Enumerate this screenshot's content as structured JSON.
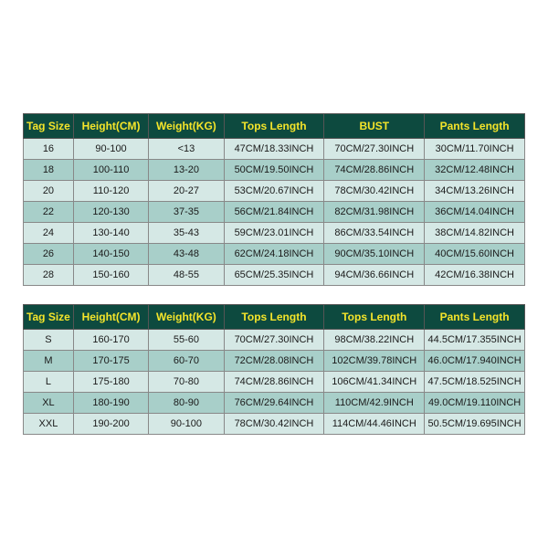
{
  "colors": {
    "header_bg": "#0d4a3f",
    "header_text": "#f5e52a",
    "row_even": "#d5e8e5",
    "row_odd": "#a8cfc9",
    "border": "#888888",
    "page_bg": "#ffffff"
  },
  "table1": {
    "headers": {
      "tag": "Tag Size",
      "height": "Height(CM)",
      "weight": "Weight(KG)",
      "tops": "Tops Length",
      "bust": "BUST",
      "pants": "Pants Length"
    },
    "rows": [
      {
        "tag": "16",
        "height": "90-100",
        "weight": "<13",
        "tops": "47CM/18.33INCH",
        "bust": "70CM/27.30INCH",
        "pants": "30CM/11.70INCH"
      },
      {
        "tag": "18",
        "height": "100-110",
        "weight": "13-20",
        "tops": "50CM/19.50INCH",
        "bust": "74CM/28.86INCH",
        "pants": "32CM/12.48INCH"
      },
      {
        "tag": "20",
        "height": "110-120",
        "weight": "20-27",
        "tops": "53CM/20.67INCH",
        "bust": "78CM/30.42INCH",
        "pants": "34CM/13.26INCH"
      },
      {
        "tag": "22",
        "height": "120-130",
        "weight": "37-35",
        "tops": "56CM/21.84INCH",
        "bust": "82CM/31.98INCH",
        "pants": "36CM/14.04INCH"
      },
      {
        "tag": "24",
        "height": "130-140",
        "weight": "35-43",
        "tops": "59CM/23.01INCH",
        "bust": "86CM/33.54INCH",
        "pants": "38CM/14.82INCH"
      },
      {
        "tag": "26",
        "height": "140-150",
        "weight": "43-48",
        "tops": "62CM/24.18INCH",
        "bust": "90CM/35.10INCH",
        "pants": "40CM/15.60INCH"
      },
      {
        "tag": "28",
        "height": "150-160",
        "weight": "48-55",
        "tops": "65CM/25.35INCH",
        "bust": "94CM/36.66INCH",
        "pants": "42CM/16.38INCH"
      }
    ]
  },
  "table2": {
    "headers": {
      "tag": "Tag Size",
      "height": "Height(CM)",
      "weight": "Weight(KG)",
      "tops": "Tops Length",
      "bust": "Tops Length",
      "pants": "Pants Length"
    },
    "rows": [
      {
        "tag": "S",
        "height": "160-170",
        "weight": "55-60",
        "tops": "70CM/27.30INCH",
        "bust": "98CM/38.22INCH",
        "pants": "44.5CM/17.355INCH"
      },
      {
        "tag": "M",
        "height": "170-175",
        "weight": "60-70",
        "tops": "72CM/28.08INCH",
        "bust": "102CM/39.78INCH",
        "pants": "46.0CM/17.940INCH"
      },
      {
        "tag": "L",
        "height": "175-180",
        "weight": "70-80",
        "tops": "74CM/28.86INCH",
        "bust": "106CM/41.34INCH",
        "pants": "47.5CM/18.525INCH"
      },
      {
        "tag": "XL",
        "height": "180-190",
        "weight": "80-90",
        "tops": "76CM/29.64INCH",
        "bust": "110CM/42.9INCH",
        "pants": "49.0CM/19.110INCH"
      },
      {
        "tag": "XXL",
        "height": "190-200",
        "weight": "90-100",
        "tops": "78CM/30.42INCH",
        "bust": "114CM/44.46INCH",
        "pants": "50.5CM/19.695INCH"
      }
    ]
  }
}
